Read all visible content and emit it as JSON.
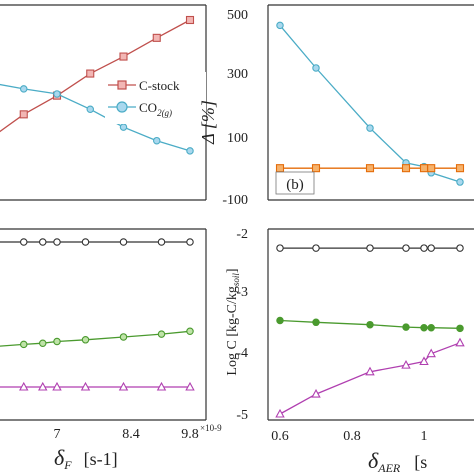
{
  "chart_data": [
    {
      "panel": "top-left",
      "type": "line",
      "x_ticks": [],
      "xlim": [
        5.5,
        9.8
      ],
      "ylim": [
        0,
        10
      ],
      "legend": {
        "placement": "right",
        "entries": [
          "C-stock",
          "CO$_{2(g)}$"
        ]
      },
      "legend_text": {
        "c_stock": "C-stock",
        "co2_main": "CO",
        "co2_sub": "2(g)"
      },
      "series": [
        {
          "key": "c-stock",
          "color": "#c0504d",
          "marker": "square",
          "x": [
            5.5,
            6.3,
            7.0,
            7.7,
            8.4,
            9.1,
            9.8
          ],
          "y": [
            2.85,
            4.45,
            5.55,
            6.85,
            7.85,
            8.95,
            10.0
          ]
        },
        {
          "key": "co2",
          "color": "#4bacc6",
          "marker": "circle",
          "x": [
            5.5,
            6.3,
            7.0,
            7.7,
            8.4,
            9.1,
            9.8
          ],
          "y": [
            6.35,
            5.95,
            5.65,
            4.75,
            3.7,
            2.9,
            2.3
          ]
        }
      ]
    },
    {
      "panel": "top-right",
      "type": "line",
      "label": "(b)",
      "ylabel": "Δ  [%]",
      "y_ticks": [
        "500",
        "300",
        "100",
        "-100"
      ],
      "ylim": [
        -100,
        500
      ],
      "xlim": [
        0.6,
        1.1
      ],
      "series": [
        {
          "key": "blue",
          "color": "#4bacc6",
          "marker": "circle",
          "x": [
            0.6,
            0.7,
            0.85,
            0.95,
            1.0,
            1.02,
            1.1
          ],
          "y": [
            463,
            325,
            130,
            17,
            5,
            -15,
            -45
          ]
        },
        {
          "key": "orange",
          "color": "#e46c0a",
          "marker": "square",
          "x": [
            0.6,
            0.7,
            0.85,
            0.95,
            1.0,
            1.02,
            1.1
          ],
          "y": [
            0,
            0,
            0,
            0,
            0,
            0,
            0
          ]
        }
      ]
    },
    {
      "panel": "bottom-left",
      "type": "line",
      "xlabel_symbol": "δ",
      "xlabel_sub": "F",
      "xlabel_unit": "[s-1]",
      "x_ticks": [
        "7",
        "8.4",
        "9.8"
      ],
      "x_multiplier": "×10-9",
      "xlim": [
        5.5,
        9.8
      ],
      "ylim": [
        -5.2,
        -1.9
      ],
      "series": [
        {
          "key": "black",
          "color": "#333333",
          "marker": "circle",
          "x": [
            5.5,
            6.3,
            6.7,
            7.0,
            7.6,
            8.4,
            9.2,
            9.8
          ],
          "y": [
            -2.25,
            -2.25,
            -2.25,
            -2.25,
            -2.25,
            -2.25,
            -2.25,
            -2.25
          ]
        },
        {
          "key": "green",
          "color": "#4a9a2e",
          "marker": "circle",
          "x": [
            5.5,
            6.3,
            6.7,
            7.0,
            7.6,
            8.4,
            9.2,
            9.8
          ],
          "y": [
            -4.1,
            -4.05,
            -4.03,
            -4.0,
            -3.97,
            -3.92,
            -3.87,
            -3.82
          ]
        },
        {
          "key": "magenta",
          "color": "#b03fb0",
          "marker": "triangle",
          "x": [
            5.5,
            6.3,
            6.7,
            7.0,
            7.6,
            8.4,
            9.2,
            9.8
          ],
          "y": [
            -4.8,
            -4.8,
            -4.8,
            -4.8,
            -4.8,
            -4.8,
            -4.8,
            -4.8
          ]
        }
      ]
    },
    {
      "panel": "bottom-right",
      "type": "line",
      "ylabel_prefix": "Log C [kg-C/kg",
      "ylabel_sub": "soil",
      "ylabel_suffix": "]",
      "y_ticks": [
        "-2",
        "-3",
        "-4",
        "-5"
      ],
      "x_ticks": [
        "0.6",
        "0.8",
        "1"
      ],
      "xlabel_symbol": "δ",
      "xlabel_sub": "AER",
      "xlabel_unit": "[s",
      "xlim": [
        0.6,
        1.1
      ],
      "ylim": [
        -5.0,
        -1.9
      ],
      "series": [
        {
          "key": "black",
          "color": "#333333",
          "marker": "circle",
          "x": [
            0.6,
            0.7,
            0.85,
            0.95,
            1.0,
            1.02,
            1.1
          ],
          "y": [
            -2.25,
            -2.25,
            -2.25,
            -2.25,
            -2.25,
            -2.25,
            -2.25
          ]
        },
        {
          "key": "green",
          "color": "#4a9a2e",
          "marker": "circle-filled",
          "x": [
            0.6,
            0.7,
            0.85,
            0.95,
            1.0,
            1.02,
            1.1
          ],
          "y": [
            -3.45,
            -3.48,
            -3.52,
            -3.56,
            -3.57,
            -3.57,
            -3.58
          ]
        },
        {
          "key": "magenta",
          "color": "#b03fb0",
          "marker": "triangle",
          "x": [
            0.6,
            0.7,
            0.85,
            0.95,
            1.0,
            1.02,
            1.1
          ],
          "y": [
            -5.0,
            -4.67,
            -4.3,
            -4.19,
            -4.13,
            -4.0,
            -3.82
          ]
        }
      ]
    }
  ]
}
